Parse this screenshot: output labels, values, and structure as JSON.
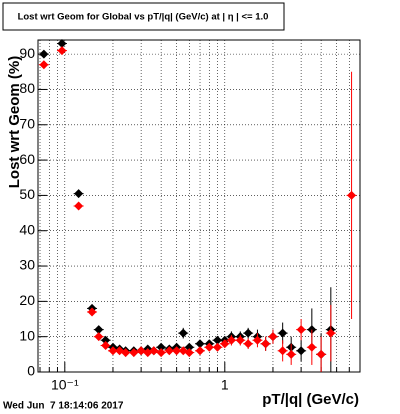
{
  "chart_data": {
    "type": "scatter",
    "title": "Lost wrt Geom for Global vs pT/|q| (GeV/c) at | η | <= 1.0",
    "x_label": "pT/|q| (GeV/c)",
    "y_label": "Lost wrt Geom (%)",
    "footer": "Wed Jun  7 18:14:06 2017",
    "x_log": true,
    "grid": true,
    "xlim": [
      0.068,
      7
    ],
    "ylim": [
      0,
      94
    ],
    "xticks": [
      {
        "value": 0.1,
        "label": "10⁻¹"
      },
      1
    ],
    "xminor": [
      0.07,
      0.08,
      0.09,
      0.2,
      0.3,
      0.4,
      0.5,
      0.6,
      0.7,
      0.8,
      0.9,
      2,
      3,
      4,
      5,
      6,
      7
    ],
    "yticks": [
      0,
      10,
      20,
      30,
      40,
      50,
      60,
      70,
      80,
      90
    ],
    "x": [
      0.074,
      0.096,
      0.122,
      0.148,
      0.163,
      0.18,
      0.2,
      0.22,
      0.24,
      0.27,
      0.3,
      0.33,
      0.36,
      0.4,
      0.45,
      0.5,
      0.55,
      0.6,
      0.7,
      0.8,
      0.9,
      1.0,
      1.1,
      1.25,
      1.4,
      1.6,
      1.8,
      2.0,
      2.3,
      2.6,
      3.0,
      3.5,
      4.0,
      4.6,
      6.2
    ],
    "series": [
      {
        "color": "#000000",
        "values": [
          90,
          93,
          50.5,
          18,
          12,
          9,
          7,
          6.5,
          6,
          6,
          6,
          6.5,
          6,
          7,
          6.5,
          7,
          11,
          7,
          8,
          8,
          9,
          9,
          10,
          10,
          11,
          10,
          8,
          10,
          11,
          7,
          6,
          12,
          5,
          12,
          null
        ],
        "errors": [
          1,
          1,
          1,
          1,
          1,
          1,
          0.8,
          0.8,
          0.8,
          0.8,
          0.8,
          0.8,
          0.8,
          0.8,
          0.8,
          1,
          1.5,
          1,
          1,
          1,
          1,
          1,
          1.5,
          1.5,
          1.5,
          2,
          2,
          2,
          3,
          3,
          3,
          6,
          6,
          12,
          null
        ]
      },
      {
        "color": "#ff0000",
        "values": [
          87,
          91,
          47,
          17,
          10,
          7.5,
          6,
          6,
          5.5,
          5.5,
          6,
          5.5,
          6,
          5.5,
          6,
          6,
          6,
          5.5,
          6,
          7,
          7,
          8,
          9,
          9,
          8,
          9,
          8,
          10,
          6,
          5,
          12,
          7,
          5,
          11,
          50
        ],
        "errors": [
          1,
          1,
          1,
          1,
          1,
          1,
          0.8,
          0.8,
          0.8,
          0.8,
          0.8,
          0.8,
          0.8,
          0.8,
          0.8,
          1,
          1,
          1,
          1,
          1,
          1,
          1,
          1.5,
          1.5,
          1.5,
          2,
          2,
          2,
          3,
          3,
          3,
          5,
          5,
          8,
          35
        ]
      }
    ]
  }
}
